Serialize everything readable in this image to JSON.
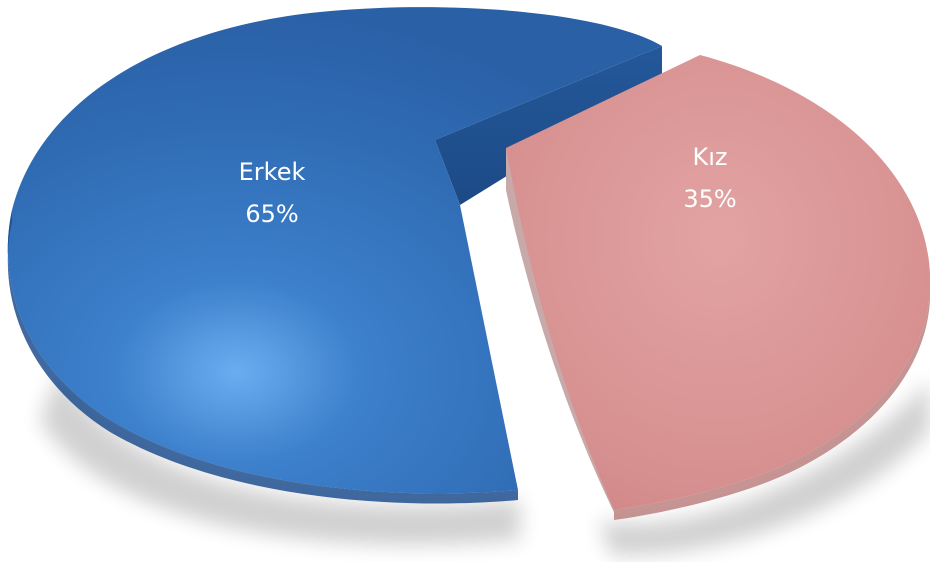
{
  "chart_data": {
    "type": "pie",
    "style": "3d-exploded",
    "title": "",
    "legend": "none",
    "categories": [
      "Erkek",
      "Kız"
    ],
    "values": [
      65,
      35
    ],
    "value_labels": [
      "65%",
      "35%"
    ],
    "colors": {
      "Erkek": "#3470b8",
      "Kız": "#d99393"
    }
  }
}
